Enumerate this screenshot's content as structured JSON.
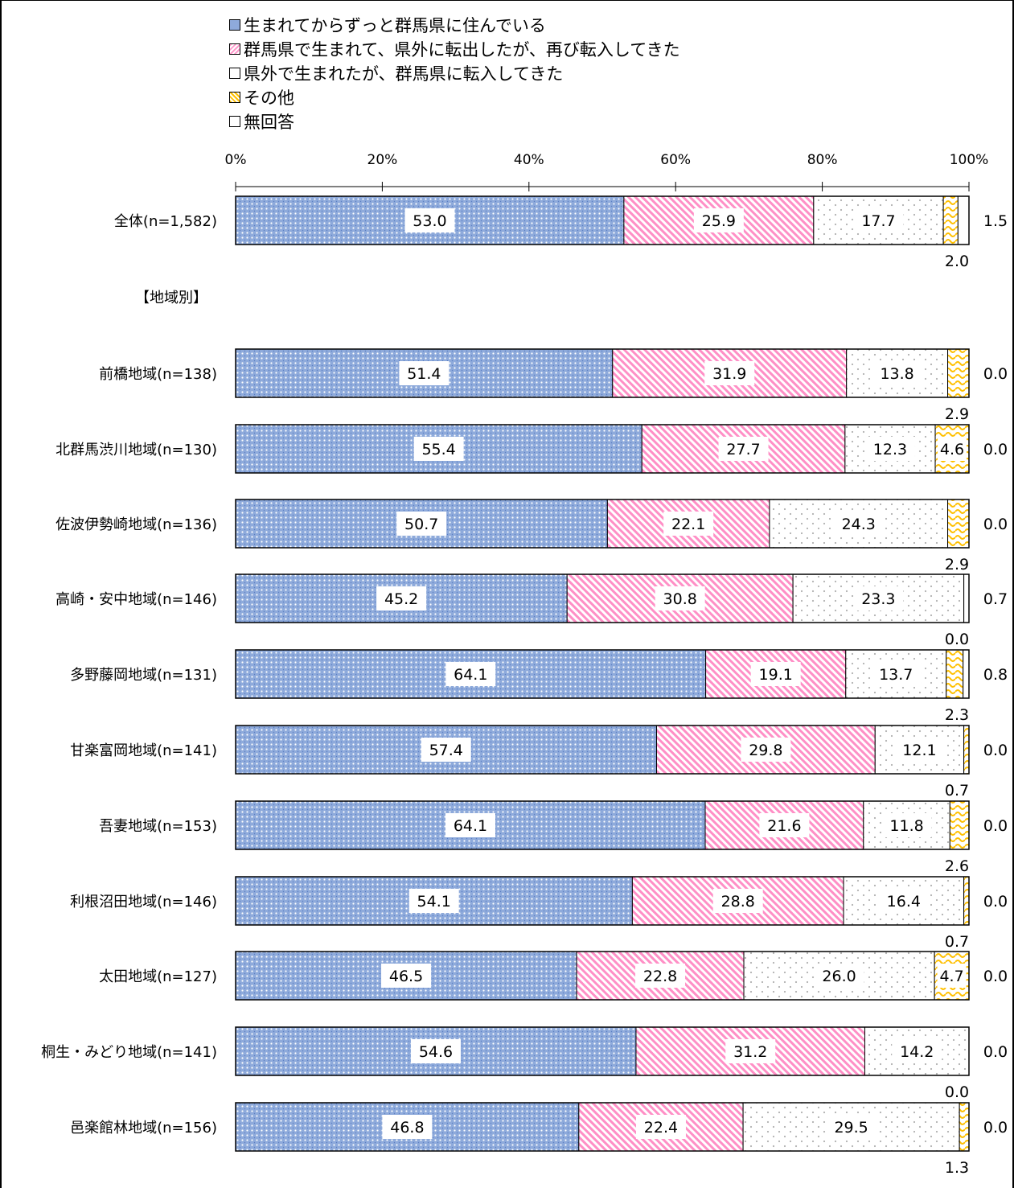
{
  "chart_data": {
    "type": "bar",
    "orientation": "horizontal",
    "stacked": "percent",
    "xlim": [
      0,
      100
    ],
    "x_ticks": [
      "0%",
      "20%",
      "40%",
      "60%",
      "80%",
      "100%"
    ],
    "series": [
      {
        "name": "生まれてからずっと群馬県に住んでいる",
        "color": "#8eaadb",
        "pattern": "dots"
      },
      {
        "name": "群馬県で生まれて、県外に転出したが、再び転入してきた",
        "color": "#ff99cc",
        "pattern": "diagonal"
      },
      {
        "name": "県外で生まれたが、群馬県に転入してきた",
        "color": "#ffffff",
        "pattern": "sparse-dots"
      },
      {
        "name": "その他",
        "color": "#ffc000",
        "pattern": "wave"
      },
      {
        "name": "無回答",
        "color": "#ffffff",
        "pattern": "none"
      }
    ],
    "section_label": "【地域別】",
    "rows": [
      {
        "label": "全体(n=1,582)",
        "values": [
          53.0,
          25.9,
          17.7,
          2.0,
          1.5
        ],
        "labels": [
          "53.0",
          "25.9",
          "17.7",
          "2.0",
          "1.5"
        ]
      },
      {
        "label": "前橋地域(n=138)",
        "values": [
          51.4,
          31.9,
          13.8,
          2.9,
          0.0
        ],
        "labels": [
          "51.4",
          "31.9",
          "13.8",
          "2.9",
          "0.0"
        ]
      },
      {
        "label": "北群馬渋川地域(n=130)",
        "values": [
          55.4,
          27.7,
          12.3,
          4.6,
          0.0
        ],
        "labels": [
          "55.4",
          "27.7",
          "12.3",
          "4.6",
          "0.0"
        ]
      },
      {
        "label": "佐波伊勢崎地域(n=136)",
        "values": [
          50.7,
          22.1,
          24.3,
          2.9,
          0.0
        ],
        "labels": [
          "50.7",
          "22.1",
          "24.3",
          "2.9",
          "0.0"
        ]
      },
      {
        "label": "高崎・安中地域(n=146)",
        "values": [
          45.2,
          30.8,
          23.3,
          0.0,
          0.7
        ],
        "labels": [
          "45.2",
          "30.8",
          "23.3",
          "0.0",
          "0.7"
        ]
      },
      {
        "label": "多野藤岡地域(n=131)",
        "values": [
          64.1,
          19.1,
          13.7,
          2.3,
          0.8
        ],
        "labels": [
          "64.1",
          "19.1",
          "13.7",
          "2.3",
          "0.8"
        ]
      },
      {
        "label": "甘楽富岡地域(n=141)",
        "values": [
          57.4,
          29.8,
          12.1,
          0.7,
          0.0
        ],
        "labels": [
          "57.4",
          "29.8",
          "12.1",
          "0.7",
          "0.0"
        ]
      },
      {
        "label": "吾妻地域(n=153)",
        "values": [
          64.1,
          21.6,
          11.8,
          2.6,
          0.0
        ],
        "labels": [
          "64.1",
          "21.6",
          "11.8",
          "2.6",
          "0.0"
        ]
      },
      {
        "label": "利根沼田地域(n=146)",
        "values": [
          54.1,
          28.8,
          16.4,
          0.7,
          0.0
        ],
        "labels": [
          "54.1",
          "28.8",
          "16.4",
          "0.7",
          "0.0"
        ]
      },
      {
        "label": "太田地域(n=127)",
        "values": [
          46.5,
          22.8,
          26.0,
          4.7,
          0.0
        ],
        "labels": [
          "46.5",
          "22.8",
          "26.0",
          "4.7",
          "0.0"
        ]
      },
      {
        "label": "桐生・みどり地域(n=141)",
        "values": [
          54.6,
          31.2,
          14.2,
          0.0,
          0.0
        ],
        "labels": [
          "54.6",
          "31.2",
          "14.2",
          "0.0",
          "0.0"
        ]
      },
      {
        "label": "邑楽館林地域(n=156)",
        "values": [
          46.8,
          22.4,
          29.5,
          1.3,
          0.0
        ],
        "labels": [
          "46.8",
          "22.4",
          "29.5",
          "1.3",
          "0.0"
        ]
      }
    ]
  }
}
